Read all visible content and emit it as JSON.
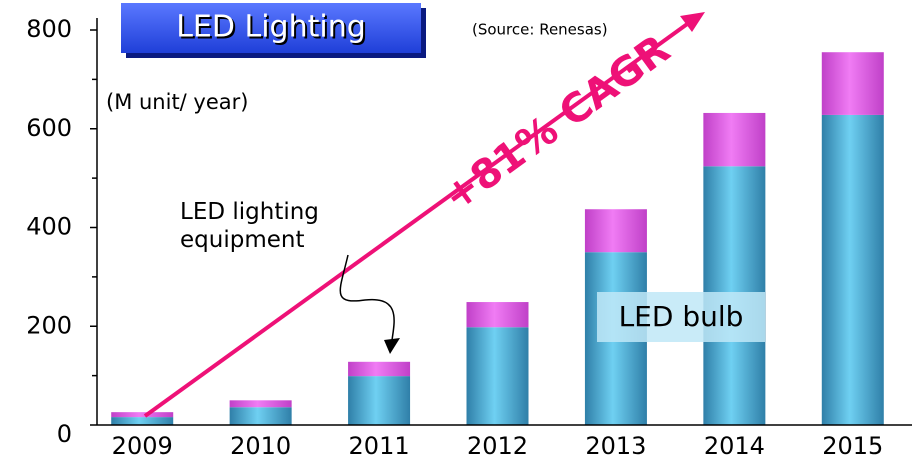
{
  "chart_data": {
    "type": "stacked_bar",
    "title": "LED Lighting",
    "subtitle": "(Source: Renesas)",
    "y_label": "(M unit/ year)",
    "annotation": "+81% CAGR",
    "categories": [
      "2009",
      "2010",
      "2011",
      "2012",
      "2013",
      "2014",
      "2015"
    ],
    "series": [
      {
        "name": "LED bulb",
        "color": "#4fb8e0",
        "values": [
          16,
          36,
          99,
          198,
          350,
          524,
          628
        ]
      },
      {
        "name": "LED lighting equipment",
        "color": "#e060e6",
        "values": [
          10,
          14,
          29,
          51,
          87,
          108,
          127
        ]
      }
    ],
    "ylim": [
      0,
      800
    ],
    "yticks": [
      0,
      200,
      400,
      600,
      800
    ],
    "minor_yticks": [
      100,
      300,
      500,
      700
    ]
  }
}
